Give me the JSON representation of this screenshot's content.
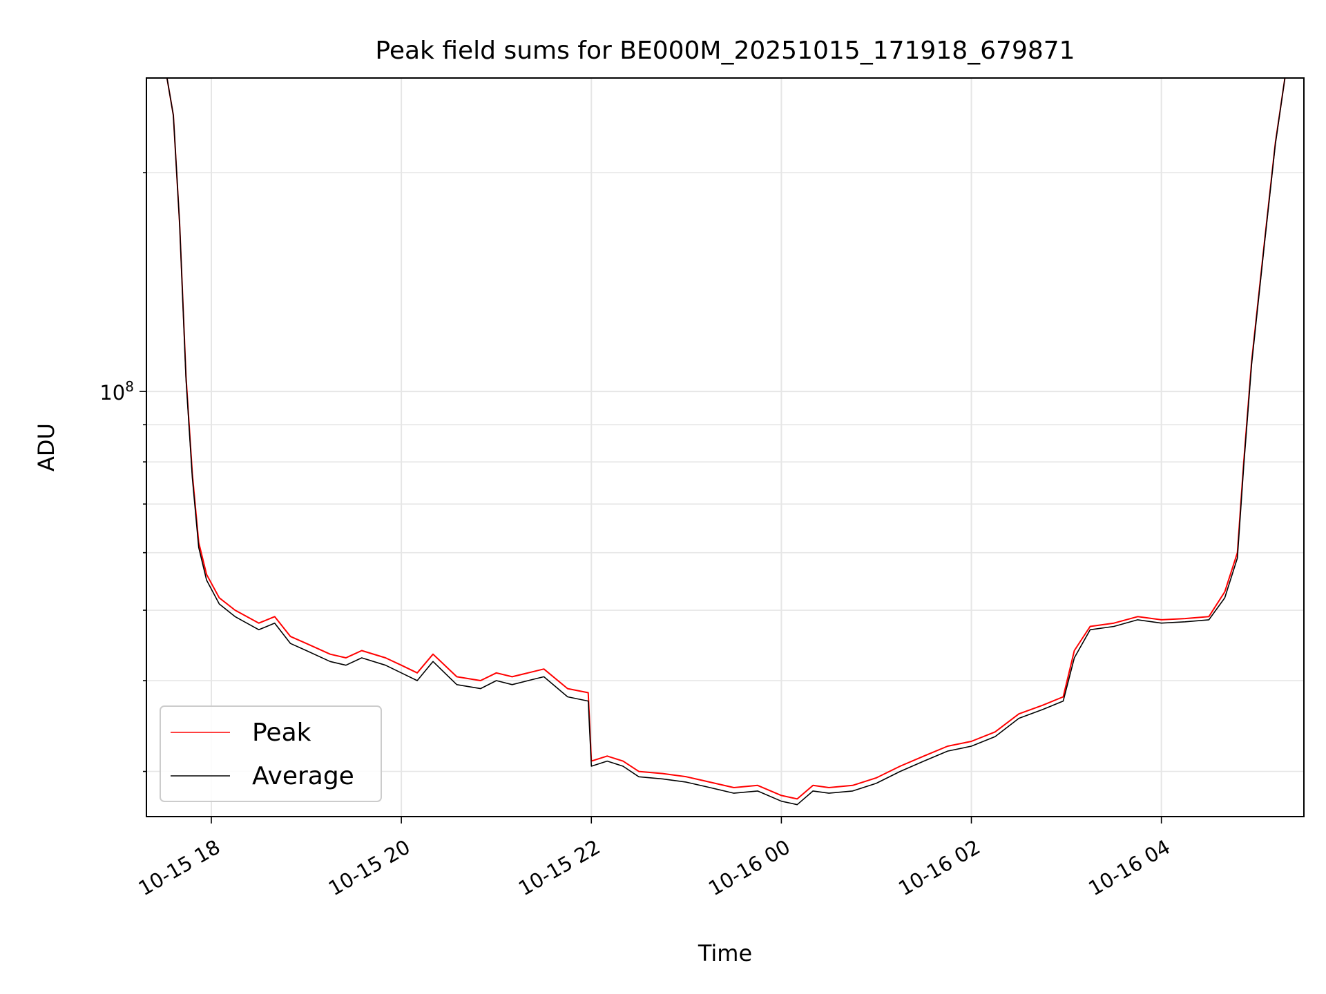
{
  "chart_data": {
    "type": "line",
    "title": "Peak field sums for BE000M_20251015_171918_679871",
    "xlabel": "Time",
    "ylabel": "ADU",
    "y_scale": "log",
    "ylim": [
      26000000,
      270000000
    ],
    "xlim": [
      "2025-10-15 17:19",
      "2025-10-16 05:30"
    ],
    "grid": true,
    "legend_position": "lower-left",
    "x_ticks": [
      {
        "value": "2025-10-15 18:00",
        "label": "10-15 18"
      },
      {
        "value": "2025-10-15 20:00",
        "label": "10-15 20"
      },
      {
        "value": "2025-10-15 22:00",
        "label": "10-15 22"
      },
      {
        "value": "2025-10-16 00:00",
        "label": "10-16 00"
      },
      {
        "value": "2025-10-16 02:00",
        "label": "10-16 02"
      },
      {
        "value": "2025-10-16 04:00",
        "label": "10-16 04"
      }
    ],
    "y_ticks": [
      {
        "value": 100000000,
        "label_base": "10",
        "label_exp": "8"
      }
    ],
    "series": [
      {
        "name": "Peak",
        "color": "#ff0000",
        "points": [
          [
            "2025-10-15 17:19",
            270000000
          ],
          [
            "2025-10-15 17:32",
            270000000
          ],
          [
            "2025-10-15 17:36",
            240000000
          ],
          [
            "2025-10-15 17:40",
            170000000
          ],
          [
            "2025-10-15 17:44",
            105000000
          ],
          [
            "2025-10-15 17:48",
            77000000
          ],
          [
            "2025-10-15 17:52",
            62000000
          ],
          [
            "2025-10-15 17:57",
            56000000
          ],
          [
            "2025-10-15 18:05",
            52000000
          ],
          [
            "2025-10-15 18:15",
            50000000
          ],
          [
            "2025-10-15 18:30",
            48000000
          ],
          [
            "2025-10-15 18:40",
            49000000
          ],
          [
            "2025-10-15 18:50",
            46000000
          ],
          [
            "2025-10-15 19:00",
            45000000
          ],
          [
            "2025-10-15 19:15",
            43500000
          ],
          [
            "2025-10-15 19:25",
            43000000
          ],
          [
            "2025-10-15 19:35",
            44000000
          ],
          [
            "2025-10-15 19:50",
            43000000
          ],
          [
            "2025-10-15 20:00",
            42000000
          ],
          [
            "2025-10-15 20:10",
            41000000
          ],
          [
            "2025-10-15 20:20",
            43500000
          ],
          [
            "2025-10-15 20:35",
            40500000
          ],
          [
            "2025-10-15 20:50",
            40000000
          ],
          [
            "2025-10-15 21:00",
            41000000
          ],
          [
            "2025-10-15 21:10",
            40500000
          ],
          [
            "2025-10-15 21:20",
            41000000
          ],
          [
            "2025-10-15 21:30",
            41500000
          ],
          [
            "2025-10-15 21:45",
            39000000
          ],
          [
            "2025-10-15 21:58",
            38500000
          ],
          [
            "2025-10-15 22:00",
            31000000
          ],
          [
            "2025-10-15 22:10",
            31500000
          ],
          [
            "2025-10-15 22:20",
            31000000
          ],
          [
            "2025-10-15 22:30",
            30000000
          ],
          [
            "2025-10-15 22:45",
            29800000
          ],
          [
            "2025-10-15 23:00",
            29500000
          ],
          [
            "2025-10-15 23:15",
            29000000
          ],
          [
            "2025-10-15 23:30",
            28500000
          ],
          [
            "2025-10-15 23:45",
            28700000
          ],
          [
            "2025-10-16 00:00",
            27800000
          ],
          [
            "2025-10-16 00:10",
            27500000
          ],
          [
            "2025-10-16 00:20",
            28700000
          ],
          [
            "2025-10-16 00:30",
            28500000
          ],
          [
            "2025-10-16 00:45",
            28700000
          ],
          [
            "2025-10-16 01:00",
            29400000
          ],
          [
            "2025-10-16 01:15",
            30500000
          ],
          [
            "2025-10-16 01:30",
            31500000
          ],
          [
            "2025-10-16 01:45",
            32500000
          ],
          [
            "2025-10-16 02:00",
            33000000
          ],
          [
            "2025-10-16 02:15",
            34000000
          ],
          [
            "2025-10-16 02:30",
            36000000
          ],
          [
            "2025-10-16 02:45",
            37000000
          ],
          [
            "2025-10-16 02:58",
            38000000
          ],
          [
            "2025-10-16 03:05",
            44000000
          ],
          [
            "2025-10-16 03:15",
            47500000
          ],
          [
            "2025-10-16 03:30",
            48000000
          ],
          [
            "2025-10-16 03:45",
            49000000
          ],
          [
            "2025-10-16 04:00",
            48500000
          ],
          [
            "2025-10-16 04:15",
            48700000
          ],
          [
            "2025-10-16 04:30",
            49000000
          ],
          [
            "2025-10-16 04:40",
            53000000
          ],
          [
            "2025-10-16 04:48",
            60000000
          ],
          [
            "2025-10-16 04:52",
            80000000
          ],
          [
            "2025-10-16 04:57",
            110000000
          ],
          [
            "2025-10-16 05:05",
            160000000
          ],
          [
            "2025-10-16 05:12",
            220000000
          ],
          [
            "2025-10-16 05:18",
            270000000
          ],
          [
            "2025-10-16 05:30",
            270000000
          ]
        ]
      },
      {
        "name": "Average",
        "color": "#000000",
        "points": [
          [
            "2025-10-15 17:19",
            270000000
          ],
          [
            "2025-10-15 17:32",
            270000000
          ],
          [
            "2025-10-15 17:36",
            240000000
          ],
          [
            "2025-10-15 17:40",
            170000000
          ],
          [
            "2025-10-15 17:44",
            104000000
          ],
          [
            "2025-10-15 17:48",
            76000000
          ],
          [
            "2025-10-15 17:52",
            61000000
          ],
          [
            "2025-10-15 17:57",
            55000000
          ],
          [
            "2025-10-15 18:05",
            51000000
          ],
          [
            "2025-10-15 18:15",
            49000000
          ],
          [
            "2025-10-15 18:30",
            47000000
          ],
          [
            "2025-10-15 18:40",
            48000000
          ],
          [
            "2025-10-15 18:50",
            45000000
          ],
          [
            "2025-10-15 19:00",
            44000000
          ],
          [
            "2025-10-15 19:15",
            42500000
          ],
          [
            "2025-10-15 19:25",
            42000000
          ],
          [
            "2025-10-15 19:35",
            43000000
          ],
          [
            "2025-10-15 19:50",
            42000000
          ],
          [
            "2025-10-15 20:00",
            41000000
          ],
          [
            "2025-10-15 20:10",
            40000000
          ],
          [
            "2025-10-15 20:20",
            42500000
          ],
          [
            "2025-10-15 20:35",
            39500000
          ],
          [
            "2025-10-15 20:50",
            39000000
          ],
          [
            "2025-10-15 21:00",
            40000000
          ],
          [
            "2025-10-15 21:10",
            39500000
          ],
          [
            "2025-10-15 21:20",
            40000000
          ],
          [
            "2025-10-15 21:30",
            40500000
          ],
          [
            "2025-10-15 21:45",
            38000000
          ],
          [
            "2025-10-15 21:58",
            37500000
          ],
          [
            "2025-10-15 22:00",
            30500000
          ],
          [
            "2025-10-15 22:10",
            31000000
          ],
          [
            "2025-10-15 22:20",
            30500000
          ],
          [
            "2025-10-15 22:30",
            29500000
          ],
          [
            "2025-10-15 22:45",
            29300000
          ],
          [
            "2025-10-15 23:00",
            29000000
          ],
          [
            "2025-10-15 23:15",
            28500000
          ],
          [
            "2025-10-15 23:30",
            28000000
          ],
          [
            "2025-10-15 23:45",
            28200000
          ],
          [
            "2025-10-16 00:00",
            27300000
          ],
          [
            "2025-10-16 00:10",
            27000000
          ],
          [
            "2025-10-16 00:20",
            28200000
          ],
          [
            "2025-10-16 00:30",
            28000000
          ],
          [
            "2025-10-16 00:45",
            28200000
          ],
          [
            "2025-10-16 01:00",
            28900000
          ],
          [
            "2025-10-16 01:15",
            30000000
          ],
          [
            "2025-10-16 01:30",
            31000000
          ],
          [
            "2025-10-16 01:45",
            32000000
          ],
          [
            "2025-10-16 02:00",
            32500000
          ],
          [
            "2025-10-16 02:15",
            33500000
          ],
          [
            "2025-10-16 02:30",
            35500000
          ],
          [
            "2025-10-16 02:45",
            36500000
          ],
          [
            "2025-10-16 02:58",
            37500000
          ],
          [
            "2025-10-16 03:05",
            43000000
          ],
          [
            "2025-10-16 03:15",
            47000000
          ],
          [
            "2025-10-16 03:30",
            47500000
          ],
          [
            "2025-10-16 03:45",
            48500000
          ],
          [
            "2025-10-16 04:00",
            48000000
          ],
          [
            "2025-10-16 04:15",
            48200000
          ],
          [
            "2025-10-16 04:30",
            48500000
          ],
          [
            "2025-10-16 04:40",
            52000000
          ],
          [
            "2025-10-16 04:48",
            59000000
          ],
          [
            "2025-10-16 04:52",
            79000000
          ],
          [
            "2025-10-16 04:57",
            109000000
          ],
          [
            "2025-10-16 05:05",
            159000000
          ],
          [
            "2025-10-16 05:12",
            219000000
          ],
          [
            "2025-10-16 05:18",
            270000000
          ],
          [
            "2025-10-16 05:30",
            270000000
          ]
        ]
      }
    ]
  }
}
